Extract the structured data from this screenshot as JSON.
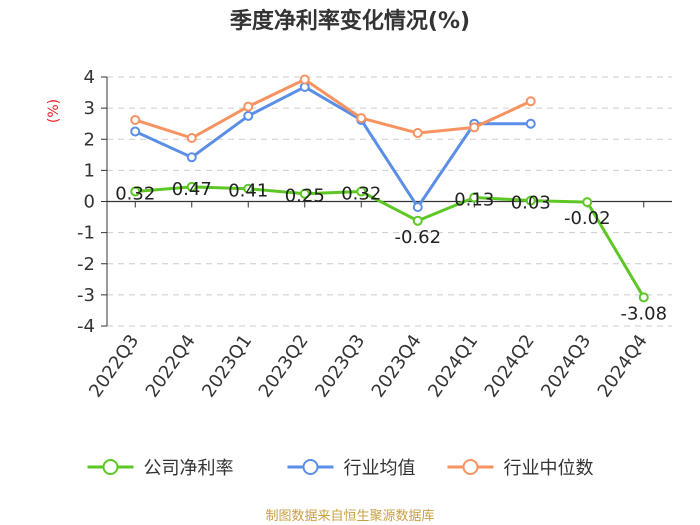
{
  "chart_data": {
    "type": "line",
    "title": "季度净利率变化情况(%)",
    "ylabel": "(%)",
    "xlabel": "",
    "ylim": [
      -4,
      4
    ],
    "yticks": [
      4,
      3,
      2,
      1,
      0,
      -1,
      -2,
      -3,
      -4
    ],
    "grid": true,
    "legend_position": "bottom",
    "categories": [
      "2022Q3",
      "2022Q4",
      "2023Q1",
      "2023Q2",
      "2023Q3",
      "2023Q4",
      "2024Q1",
      "2024Q2",
      "2024Q3",
      "2024Q4"
    ],
    "series": [
      {
        "name": "公司净利率",
        "color": "#5cc725",
        "values": [
          0.32,
          0.47,
          0.41,
          0.25,
          0.32,
          -0.62,
          0.13,
          0.03,
          -0.02,
          -3.08
        ],
        "data_labels": [
          "0.32",
          "0.47",
          "0.41",
          "0.25",
          "0.32",
          "-0.62",
          "0.13",
          "0.03",
          "-0.02",
          "-3.08"
        ]
      },
      {
        "name": "行业均值",
        "color": "#5b8ee6",
        "values": [
          2.25,
          1.42,
          2.75,
          3.68,
          2.62,
          -0.18,
          2.5,
          2.5,
          null,
          null
        ]
      },
      {
        "name": "行业中位数",
        "color": "#f79361",
        "values": [
          2.62,
          2.04,
          3.05,
          3.92,
          2.68,
          2.2,
          2.38,
          3.22,
          null,
          null
        ]
      }
    ]
  },
  "source_note": "制图数据来自恒生聚源数据库"
}
